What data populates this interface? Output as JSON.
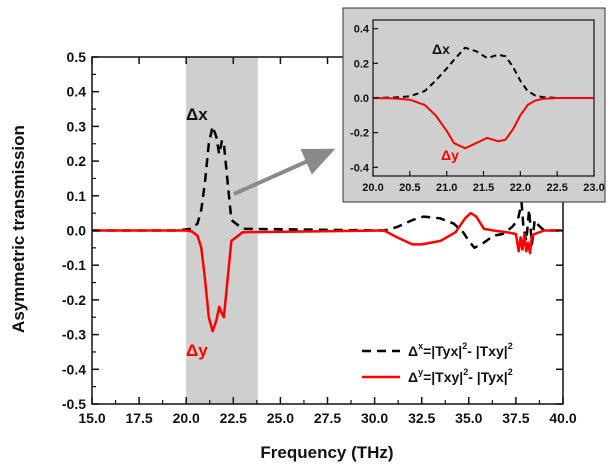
{
  "chart_data": {
    "type": "line",
    "xlabel": "Frequency (THz)",
    "ylabel": "Asymmetric transmission",
    "xlim": [
      15.0,
      40.0
    ],
    "ylim": [
      -0.5,
      0.5
    ],
    "xticks": [
      "15.0",
      "17.5",
      "20.0",
      "22.5",
      "25.0",
      "27.5",
      "30.0",
      "32.5",
      "35.0",
      "37.5",
      "40.0"
    ],
    "yticks": [
      "0.5",
      "0.4",
      "0.3",
      "0.2",
      "0.1",
      "0.0",
      "-0.1",
      "-0.2",
      "-0.3",
      "-0.4",
      "-0.5"
    ],
    "shaded_region": [
      20.0,
      23.8
    ],
    "grid": false,
    "legend_position": "bottom-right",
    "legend": [
      {
        "prefix": "Δ",
        "sup": "x",
        "rest": "=|Tyx|",
        "sup2": "2",
        "rest2": "- |Txy|",
        "sup3": "2"
      },
      {
        "prefix": "Δ",
        "sup": "y",
        "rest": "=|Txy|",
        "sup2": "2",
        "rest2": "- |Tyx|",
        "sup3": "2"
      }
    ],
    "annotations": {
      "dx": "Δx",
      "dy": "Δy"
    },
    "series": [
      {
        "color": "#000000",
        "dash": "dashed",
        "x": [
          15.0,
          19.5,
          20.3,
          20.6,
          20.8,
          21.0,
          21.2,
          21.4,
          21.6,
          21.75,
          21.9,
          22.0,
          22.2,
          22.4,
          23.0,
          30.5,
          31.2,
          32.0,
          32.6,
          33.5,
          34.2,
          34.7,
          35.0,
          35.3,
          35.8,
          36.3,
          36.8,
          37.3,
          37.6,
          37.8,
          37.9,
          38.05,
          38.2,
          38.35,
          38.5,
          38.7,
          39.0,
          40.0
        ],
        "y": [
          0.0,
          0.0,
          0.005,
          0.02,
          0.06,
          0.14,
          0.25,
          0.3,
          0.27,
          0.22,
          0.26,
          0.25,
          0.14,
          0.03,
          0.005,
          0.0,
          0.01,
          0.03,
          0.04,
          0.035,
          0.02,
          -0.005,
          -0.03,
          -0.05,
          -0.035,
          -0.015,
          -0.01,
          0.01,
          0.03,
          0.08,
          0.01,
          -0.03,
          0.06,
          -0.04,
          0.03,
          0.015,
          0.0,
          0.0
        ]
      },
      {
        "color": "#ff0000",
        "dash": "solid",
        "x": [
          15.0,
          20.0,
          20.3,
          20.6,
          20.8,
          21.0,
          21.2,
          21.4,
          21.6,
          21.75,
          21.9,
          22.0,
          22.2,
          22.4,
          23.0,
          30.5,
          31.2,
          32.0,
          32.5,
          33.5,
          34.3,
          34.8,
          35.1,
          35.4,
          35.8,
          36.3,
          37.0,
          37.5,
          37.65,
          37.75,
          37.85,
          37.95,
          38.05,
          38.15,
          38.25,
          38.35,
          38.5,
          39.0,
          40.0
        ],
        "y": [
          0.0,
          0.0,
          -0.003,
          -0.015,
          -0.05,
          -0.14,
          -0.25,
          -0.29,
          -0.26,
          -0.22,
          -0.24,
          -0.25,
          -0.14,
          -0.03,
          -0.005,
          0.0,
          -0.02,
          -0.04,
          -0.04,
          -0.03,
          -0.005,
          0.035,
          0.05,
          0.04,
          0.005,
          0.0,
          -0.005,
          -0.01,
          -0.06,
          -0.02,
          -0.055,
          -0.01,
          -0.06,
          -0.035,
          -0.065,
          -0.015,
          -0.01,
          0.0,
          0.0
        ]
      }
    ],
    "inset": {
      "xlim": [
        20.0,
        23.0
      ],
      "ylim": [
        -0.45,
        0.45
      ],
      "xticks": [
        "20.0",
        "20.5",
        "21.0",
        "21.5",
        "22.0",
        "22.5",
        "23.0"
      ],
      "yticks": [
        "0.4",
        "0.2",
        "0.0",
        "-0.2",
        "-0.4"
      ],
      "series": [
        {
          "color": "#000000",
          "dash": "dashed",
          "x": [
            20.0,
            20.3,
            20.5,
            20.7,
            20.85,
            21.0,
            21.1,
            21.25,
            21.4,
            21.55,
            21.7,
            21.8,
            21.9,
            22.0,
            22.1,
            22.2,
            22.3,
            22.5,
            22.8,
            23.0
          ],
          "y": [
            0.0,
            0.003,
            0.01,
            0.04,
            0.1,
            0.17,
            0.22,
            0.29,
            0.27,
            0.23,
            0.25,
            0.24,
            0.18,
            0.1,
            0.04,
            0.015,
            0.005,
            0.0,
            0.0,
            0.0
          ]
        },
        {
          "color": "#ff0000",
          "dash": "solid",
          "x": [
            20.0,
            20.3,
            20.5,
            20.7,
            20.85,
            21.0,
            21.1,
            21.25,
            21.4,
            21.55,
            21.7,
            21.8,
            21.9,
            22.0,
            22.1,
            22.2,
            22.3,
            22.5,
            22.8,
            23.0
          ],
          "y": [
            0.0,
            -0.003,
            -0.01,
            -0.04,
            -0.1,
            -0.19,
            -0.26,
            -0.29,
            -0.26,
            -0.23,
            -0.25,
            -0.24,
            -0.18,
            -0.1,
            -0.04,
            -0.015,
            -0.005,
            0.0,
            0.0,
            0.0
          ]
        }
      ]
    }
  }
}
